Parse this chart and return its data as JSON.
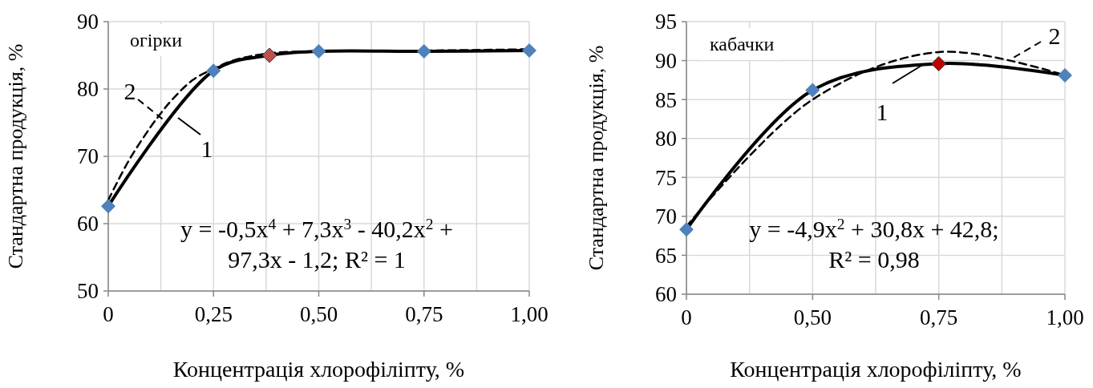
{
  "chart_data": [
    {
      "type": "line",
      "xlabel": "Концентрація хлорофіліпту, %",
      "ylabel": "Стандартна продукція, %",
      "annotations": [
        "огірки",
        "y = -0,5x$^{4}$ + 7,3x$^{3}$ - 40,2x$^{2}$ +\n97,3x - 1,2; R² = 1"
      ],
      "x": [
        0,
        0.25,
        0.383,
        0.5,
        0.75,
        1
      ],
      "xlim": [
        0,
        1
      ],
      "xticks": [
        0,
        {
          "value": 0.125,
          "label": null
        },
        {
          "value": 0.25,
          "label": "0,25"
        },
        {
          "value": 0.375,
          "label": null
        },
        {
          "value": 0.5,
          "label": "0,50"
        },
        {
          "value": 0.625,
          "label": null
        },
        {
          "value": 0.75,
          "label": "0,75"
        },
        {
          "value": 0.875,
          "label": null
        },
        {
          "value": 1,
          "label": "1,00"
        }
      ],
      "ylim": [
        50,
        90
      ],
      "yticks": [
        50,
        60,
        70,
        80,
        90
      ],
      "grid": true,
      "series": [
        {
          "name": "1",
          "marker": "diamond",
          "line_style": "solid",
          "color": "#000000",
          "colors": [
            "#4f81bd",
            "#4f81bd",
            "#c0504d",
            "#4f81bd",
            "#4f81bd",
            "#4f81bd"
          ],
          "values": [
            62.6,
            82.7,
            85.0,
            85.6,
            85.6,
            85.7
          ]
        },
        {
          "name": "2",
          "marker": "none",
          "line_style": "dashed",
          "color": "#000000",
          "x": [
            0,
            0.05,
            0.1,
            0.125,
            0.15,
            0.2,
            0.25,
            0.3,
            0.383,
            0.5,
            0.75,
            1
          ],
          "values": [
            63.5,
            69.5,
            74.3,
            76.4,
            78.3,
            81.3,
            83.0,
            84.3,
            85.3,
            85.6,
            85.7,
            85.9
          ]
        }
      ]
    },
    {
      "type": "line",
      "xlabel": "Концентрація хлорофіліпту, %",
      "ylabel": "Стандартна продукція, %",
      "annotations": [
        "кабачки",
        "y = -4,9x$^{2}$ + 30,8x + 42,8;\nR² = 0,98"
      ],
      "categories": [
        "0",
        "0,50",
        "0,75",
        "1,00"
      ],
      "ylim": [
        60,
        95
      ],
      "yticks": [
        60,
        65,
        70,
        75,
        80,
        85,
        90,
        95
      ],
      "grid": true,
      "series": [
        {
          "name": "1",
          "marker": "diamond",
          "line_style": "solid",
          "color": "#000000",
          "colors": [
            "#4f81bd",
            "#4f81bd",
            "#c00000",
            "#4f81bd"
          ],
          "values": [
            68.3,
            86.2,
            89.6,
            88.1
          ]
        },
        {
          "name": "2",
          "marker": "none",
          "line_style": "dashed",
          "color": "#000000",
          "values": [
            68.7,
            85.0,
            91.1,
            88.1
          ]
        }
      ]
    }
  ]
}
